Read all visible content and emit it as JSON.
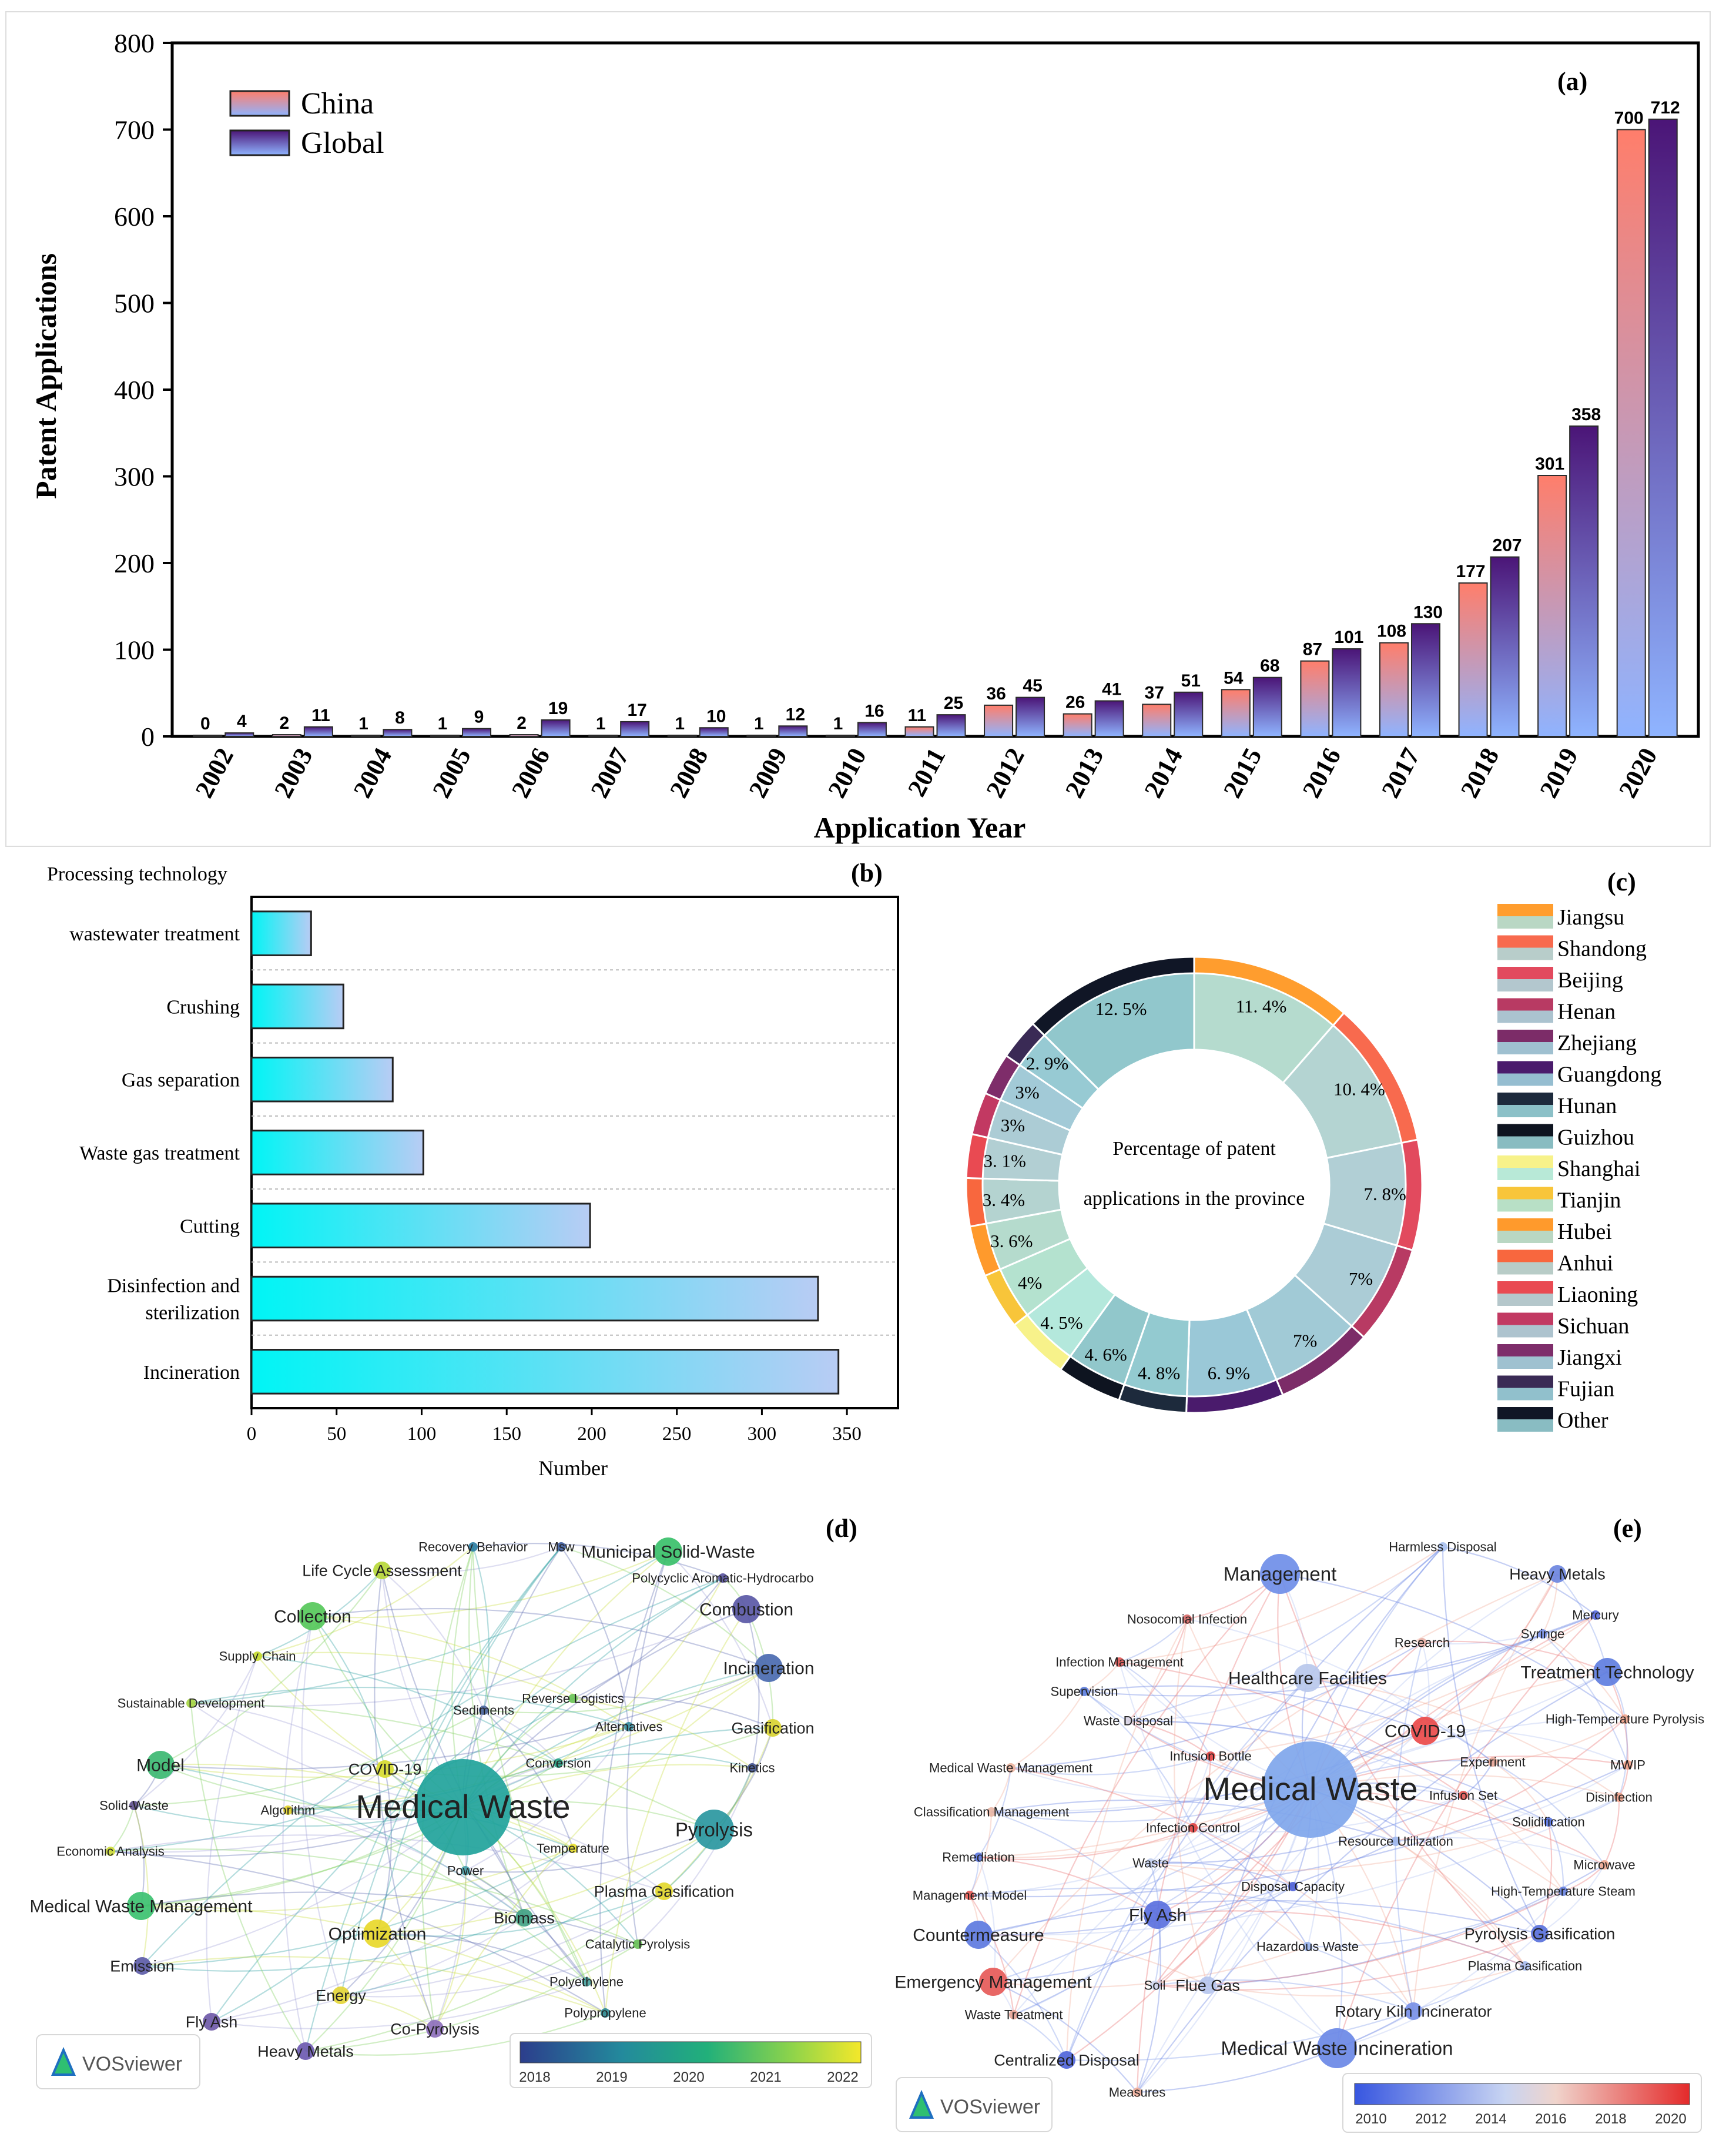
{
  "panels": {
    "a": "(a)",
    "b": "(b)",
    "c": "(c)",
    "d": "(d)",
    "e": "(e)"
  },
  "chart_data": [
    {
      "id": "a",
      "type": "bar",
      "xlabel": "Application Year",
      "ylabel": "Patent Applications",
      "ylim": [
        0,
        800
      ],
      "yticks": [
        0,
        100,
        200,
        300,
        400,
        500,
        600,
        700,
        800
      ],
      "categories": [
        "2002",
        "2003",
        "2004",
        "2005",
        "2006",
        "2007",
        "2008",
        "2009",
        "2010",
        "2011",
        "2012",
        "2013",
        "2014",
        "2015",
        "2016",
        "2017",
        "2018",
        "2019",
        "2020"
      ],
      "series": [
        {
          "name": "China",
          "values": [
            0,
            2,
            1,
            1,
            2,
            1,
            1,
            1,
            1,
            11,
            36,
            26,
            37,
            54,
            87,
            108,
            177,
            301,
            700
          ]
        },
        {
          "name": "Global",
          "values": [
            4,
            11,
            8,
            9,
            19,
            17,
            10,
            12,
            16,
            25,
            45,
            41,
            51,
            68,
            101,
            130,
            207,
            358,
            712
          ]
        }
      ],
      "legend_position": "top-left"
    },
    {
      "id": "b",
      "type": "bar",
      "orientation": "horizontal",
      "title": "Processing technology",
      "xlabel": "Number",
      "xlim": [
        0,
        380
      ],
      "xticks": [
        0,
        50,
        100,
        150,
        200,
        250,
        300,
        350
      ],
      "categories": [
        "wastewater treatment",
        "Crushing",
        "Gas separation",
        "Waste gas treatment",
        "Cutting",
        "Disinfection and sterilization",
        "Incineration"
      ],
      "category_lines": [
        [
          "wastewater treatment"
        ],
        [
          "Crushing"
        ],
        [
          "Gas separation"
        ],
        [
          "Waste gas treatment"
        ],
        [
          "Cutting"
        ],
        [
          "Disinfection and",
          "sterilization"
        ],
        [
          "Incineration"
        ]
      ],
      "values": [
        35,
        54,
        83,
        101,
        199,
        333,
        345
      ]
    },
    {
      "id": "c",
      "type": "pie",
      "center_text": [
        "Percentage of patent",
        "applications in the province"
      ],
      "slices": [
        {
          "label": "Jiangsu",
          "value": 11.4,
          "text": "11. 4%",
          "color": "#ff9d2e"
        },
        {
          "label": "Shandong",
          "value": 10.4,
          "text": "10. 4%",
          "color": "#f86a4e"
        },
        {
          "label": "Beijing",
          "value": 7.8,
          "text": "7. 8%",
          "color": "#e24a5e"
        },
        {
          "label": "Henan",
          "value": 7.0,
          "text": "7%",
          "color": "#b83a63"
        },
        {
          "label": "Zhejiang",
          "value": 7.0,
          "text": "7%",
          "color": "#7c2c68"
        },
        {
          "label": "Guangdong",
          "value": 6.9,
          "text": "6. 9%",
          "color": "#4a1b6c"
        },
        {
          "label": "Hunan",
          "value": 4.8,
          "text": "4. 8%",
          "color": "#1d2a3c"
        },
        {
          "label": "Guizhou",
          "value": 4.6,
          "text": "4. 6%",
          "color": "#0e1420"
        },
        {
          "label": "Shanghai",
          "value": 4.5,
          "text": "4. 5%",
          "color": "#f7f28a"
        },
        {
          "label": "Tianjin",
          "value": 4.0,
          "text": "4%",
          "color": "#f8c53a"
        },
        {
          "label": "Hubei",
          "value": 3.6,
          "text": "3. 6%",
          "color": "#ff9a2c"
        },
        {
          "label": "Anhui",
          "value": 3.4,
          "text": "3. 4%",
          "color": "#f8673e"
        },
        {
          "label": "Liaoning",
          "value": 3.1,
          "text": "3. 1%",
          "color": "#e94a52"
        },
        {
          "label": "Sichuan",
          "value": 3.0,
          "text": "3%",
          "color": "#c23962"
        },
        {
          "label": "Jiangxi",
          "value": 3.0,
          "text": "3%",
          "color": "#7e2d6a"
        },
        {
          "label": "Fujian",
          "value": 2.9,
          "text": "2. 9%",
          "color": "#3a2a55"
        },
        {
          "label": "Other",
          "value": 12.5,
          "text": "12. 5%",
          "color": "#101626"
        }
      ]
    }
  ],
  "network_d": {
    "logo": "VOSviewer",
    "colorbar_ticks": [
      "2018",
      "2019",
      "2020",
      "2021",
      "2022"
    ],
    "nodes": [
      {
        "label": "Medical Waste",
        "size": "xl",
        "color": "#21a39b"
      },
      {
        "label": "Recovery Behavior",
        "size": "xs",
        "color": "#2e7fa4"
      },
      {
        "label": "Msw",
        "size": "xs",
        "color": "#4160a0"
      },
      {
        "label": "Municipal Solid-Waste",
        "size": "m",
        "color": "#39c06a"
      },
      {
        "label": "Polycyclic Aromatic-Hydrocarbo",
        "size": "xs",
        "color": "#5a55a0"
      },
      {
        "label": "Life Cycle Assessment",
        "size": "s",
        "color": "#b7d83a"
      },
      {
        "label": "Collection",
        "size": "m",
        "color": "#56c85a"
      },
      {
        "label": "Combustion",
        "size": "m",
        "color": "#5a58a6"
      },
      {
        "label": "Supply Chain",
        "size": "xs",
        "color": "#c5db30"
      },
      {
        "label": "Incineration",
        "size": "m",
        "color": "#4a6ab0"
      },
      {
        "label": "Sustainable Development",
        "size": "xs",
        "color": "#a8d645"
      },
      {
        "label": "Reverse Logistics",
        "size": "xs",
        "color": "#6bc458"
      },
      {
        "label": "Sediments",
        "size": "xs",
        "color": "#4e68a0"
      },
      {
        "label": "Alternatives",
        "size": "xs",
        "color": "#3a8ea0"
      },
      {
        "label": "Gasification",
        "size": "s",
        "color": "#d9d432"
      },
      {
        "label": "Conversion",
        "size": "xs",
        "color": "#2aa387"
      },
      {
        "label": "Model",
        "size": "m",
        "color": "#3cb872"
      },
      {
        "label": "COVID-19",
        "size": "s",
        "color": "#d8dc30"
      },
      {
        "label": "Kinetics",
        "size": "xs",
        "color": "#42548e"
      },
      {
        "label": "Solid-Waste",
        "size": "xs",
        "color": "#60508e"
      },
      {
        "label": "Algorithm",
        "size": "xs",
        "color": "#e4d42c"
      },
      {
        "label": "Pyrolysis",
        "size": "l",
        "color": "#2a97a0"
      },
      {
        "label": "Economic Analysis",
        "size": "xs",
        "color": "#cddc3a"
      },
      {
        "label": "Temperature",
        "size": "xs",
        "color": "#e6dc2c"
      },
      {
        "label": "Power",
        "size": "xs",
        "color": "#48a0a8"
      },
      {
        "label": "Plasma Gasification",
        "size": "s",
        "color": "#e3d82e"
      },
      {
        "label": "Medical Waste Management",
        "size": "m",
        "color": "#3cc170"
      },
      {
        "label": "Biomass",
        "size": "s",
        "color": "#42a284"
      },
      {
        "label": "Optimization",
        "size": "m",
        "color": "#e8d82a"
      },
      {
        "label": "Catalytic Pyrolysis",
        "size": "xs",
        "color": "#6ac258"
      },
      {
        "label": "Emission",
        "size": "s",
        "color": "#5d5ca8"
      },
      {
        "label": "Polyethylene",
        "size": "xs",
        "color": "#4aa3a0"
      },
      {
        "label": "Energy",
        "size": "s",
        "color": "#e4d638"
      },
      {
        "label": "Polypropylene",
        "size": "xs",
        "color": "#2f8a94"
      },
      {
        "label": "Fly Ash",
        "size": "s",
        "color": "#6f5aa8"
      },
      {
        "label": "Co-Pyrolysis",
        "size": "s",
        "color": "#8e70bc"
      },
      {
        "label": "Heavy Metals",
        "size": "s",
        "color": "#6c5ab0"
      }
    ]
  },
  "network_e": {
    "logo": "VOSviewer",
    "colorbar_ticks": [
      "2010",
      "2012",
      "2014",
      "2016",
      "2018",
      "2020"
    ],
    "nodes": [
      {
        "label": "Medical Waste",
        "size": "xl",
        "color": "#7fa6ec"
      },
      {
        "label": "Harmless Disposal",
        "size": "xs",
        "color": "#aac2f0"
      },
      {
        "label": "Management",
        "size": "l",
        "color": "#6f8ee8"
      },
      {
        "label": "Heavy Metals",
        "size": "s",
        "color": "#6d86e0"
      },
      {
        "label": "Mercury",
        "size": "xs",
        "color": "#5a6ee0"
      },
      {
        "label": "Nosocomial Infection",
        "size": "xs",
        "color": "#d86a68"
      },
      {
        "label": "Syringe",
        "size": "xs",
        "color": "#7890e4"
      },
      {
        "label": "Research",
        "size": "xs",
        "color": "#e8b2a8"
      },
      {
        "label": "Infection Management",
        "size": "xs",
        "color": "#e25a58"
      },
      {
        "label": "Healthcare Facilities",
        "size": "m",
        "color": "#b8c8ec"
      },
      {
        "label": "Treatment Technology",
        "size": "m",
        "color": "#5f7ee0"
      },
      {
        "label": "Supervision",
        "size": "xs",
        "color": "#6080e0"
      },
      {
        "label": "Waste Disposal",
        "size": "xs",
        "color": "#d8d4e4"
      },
      {
        "label": "High-Temperature Pyrolysis",
        "size": "xs",
        "color": "#f0a68e"
      },
      {
        "label": "COVID-19",
        "size": "m",
        "color": "#ea4a4a"
      },
      {
        "label": "Infusion Bottle",
        "size": "xs",
        "color": "#e44848"
      },
      {
        "label": "Experiment",
        "size": "xs",
        "color": "#e8a898"
      },
      {
        "label": "MWIP",
        "size": "xs",
        "color": "#f0a088"
      },
      {
        "label": "Medical Waste Management",
        "size": "xs",
        "color": "#ecb4a0"
      },
      {
        "label": "Infusion Set",
        "size": "xs",
        "color": "#e65a56"
      },
      {
        "label": "Disinfection",
        "size": "xs",
        "color": "#f0a28a"
      },
      {
        "label": "Classification Management",
        "size": "xs",
        "color": "#e8b6a6"
      },
      {
        "label": "Infection Control",
        "size": "xs",
        "color": "#e04444"
      },
      {
        "label": "Solidification",
        "size": "xs",
        "color": "#5a76e2"
      },
      {
        "label": "Resource Utilization",
        "size": "xs",
        "color": "#9fb8ee"
      },
      {
        "label": "Remediation",
        "size": "xs",
        "color": "#5e78de"
      },
      {
        "label": "Waste",
        "size": "xs",
        "color": "#c4d0ee"
      },
      {
        "label": "Microwave",
        "size": "xs",
        "color": "#f0aa92"
      },
      {
        "label": "Management Model",
        "size": "xs",
        "color": "#e65c56"
      },
      {
        "label": "Disposal Capacity",
        "size": "xs",
        "color": "#5064d8"
      },
      {
        "label": "High-Temperature Steam",
        "size": "xs",
        "color": "#6a86e2"
      },
      {
        "label": "Countermeasure",
        "size": "m",
        "color": "#5d7ae0"
      },
      {
        "label": "Fly Ash",
        "size": "m",
        "color": "#5a70de"
      },
      {
        "label": "Hazardous Waste",
        "size": "xs",
        "color": "#9ab2ec"
      },
      {
        "label": "Pyrolysis Gasification",
        "size": "s",
        "color": "#5a72dc"
      },
      {
        "label": "Plasma Gasification",
        "size": "xs",
        "color": "#a8bcee"
      },
      {
        "label": "Emergency Management",
        "size": "m",
        "color": "#e65a58"
      },
      {
        "label": "Soil",
        "size": "xs",
        "color": "#d0d8f0"
      },
      {
        "label": "Flue Gas",
        "size": "s",
        "color": "#b6c6ee"
      },
      {
        "label": "Waste Treatment",
        "size": "xs",
        "color": "#e8a496"
      },
      {
        "label": "Rotary Kiln Incinerator",
        "size": "s",
        "color": "#7890e6"
      },
      {
        "label": "Medical Waste Incineration",
        "size": "l",
        "color": "#6a88e6"
      },
      {
        "label": "Centralized Disposal",
        "size": "s",
        "color": "#5066da"
      },
      {
        "label": "Measures",
        "size": "xs",
        "color": "#f0b09c"
      }
    ]
  }
}
